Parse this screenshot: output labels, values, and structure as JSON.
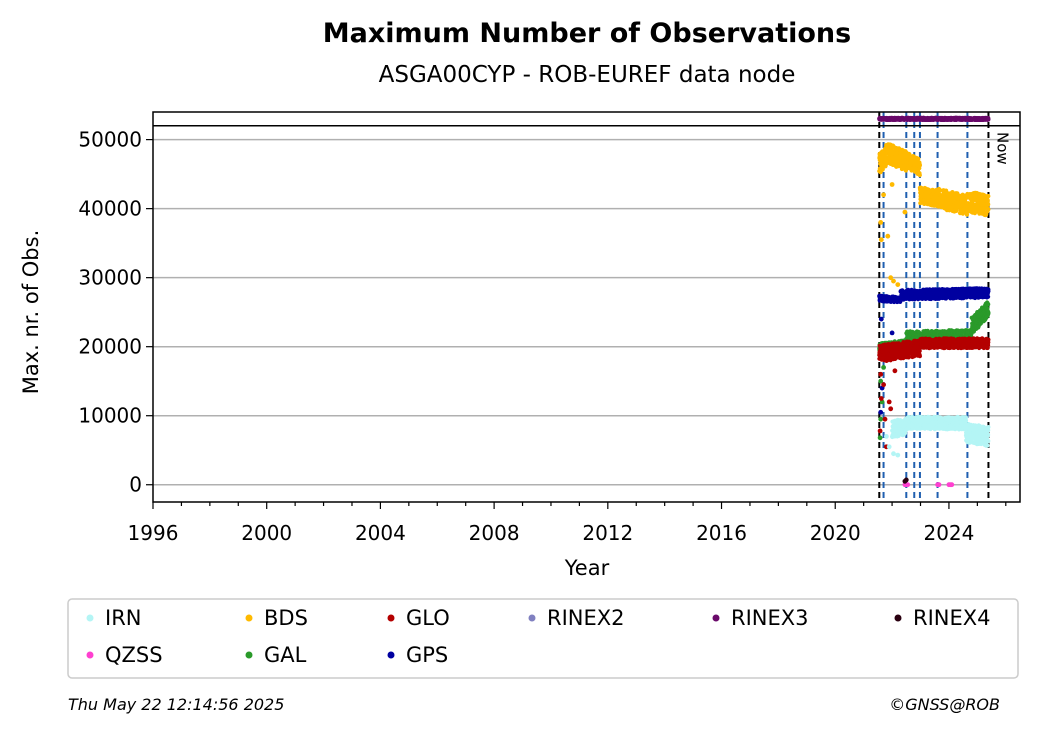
{
  "chart_data": {
    "type": "scatter",
    "title": "Maximum Number of Observations",
    "subtitle": "ASGA00CYP - ROB-EUREF data node",
    "xlabel": "Year",
    "ylabel": "Max. nr. of Obs.",
    "xlim": [
      1996,
      2026.5
    ],
    "ylim": [
      -2500,
      54000
    ],
    "xticks": [
      1996,
      2000,
      2004,
      2008,
      2012,
      2016,
      2020,
      2024
    ],
    "yticks": [
      0,
      10000,
      20000,
      30000,
      40000,
      50000
    ],
    "grid": "horizontal",
    "hline": 52000,
    "now_label": "Now",
    "now_x": 2025.39,
    "vlines": [
      {
        "x": 2021.55,
        "color": "#000000"
      },
      {
        "x": 2021.7,
        "color": "#1f5fb0"
      },
      {
        "x": 2022.5,
        "color": "#1f5fb0"
      },
      {
        "x": 2022.78,
        "color": "#1f5fb0"
      },
      {
        "x": 2022.98,
        "color": "#1f5fb0"
      },
      {
        "x": 2023.6,
        "color": "#1f5fb0"
      },
      {
        "x": 2024.65,
        "color": "#1f5fb0"
      },
      {
        "x": 2025.39,
        "color": "#000000"
      }
    ],
    "legend": {
      "placement": "below",
      "entries": [
        {
          "name": "IRN",
          "color": "#b4f5f5"
        },
        {
          "name": "BDS",
          "color": "#ffba00"
        },
        {
          "name": "GLO",
          "color": "#b40000"
        },
        {
          "name": "RINEX2",
          "color": "#8080c0"
        },
        {
          "name": "RINEX3",
          "color": "#6a0a6a"
        },
        {
          "name": "RINEX4",
          "color": "#2a0010"
        },
        {
          "name": "QZSS",
          "color": "#ff40d0"
        },
        {
          "name": "GAL",
          "color": "#2a9a2a"
        },
        {
          "name": "GPS",
          "color": "#0000a0"
        }
      ]
    },
    "series": [
      {
        "name": "RINEX3",
        "color": "#6a0a6a",
        "segments": [
          {
            "x0": 2021.55,
            "x1": 2025.39,
            "y0": 53000,
            "y1": 53000,
            "spread": 150
          }
        ],
        "outliers": []
      },
      {
        "name": "BDS",
        "color": "#ffba00",
        "segments": [
          {
            "x0": 2021.55,
            "x1": 2021.85,
            "y0": 46500,
            "y1": 48000,
            "spread": 1500
          },
          {
            "x0": 2021.85,
            "x1": 2022.5,
            "y0": 48000,
            "y1": 47000,
            "spread": 1500
          },
          {
            "x0": 2022.5,
            "x1": 2022.98,
            "y0": 47000,
            "y1": 46000,
            "spread": 1200
          },
          {
            "x0": 2022.98,
            "x1": 2023.6,
            "y0": 42000,
            "y1": 41500,
            "spread": 1200
          },
          {
            "x0": 2023.6,
            "x1": 2024.65,
            "y0": 41500,
            "y1": 40500,
            "spread": 1400
          },
          {
            "x0": 2024.65,
            "x1": 2025.39,
            "y0": 41000,
            "y1": 40500,
            "spread": 1500
          }
        ],
        "outliers": [
          [
            2021.6,
            38000
          ],
          [
            2021.62,
            35500
          ],
          [
            2021.7,
            42000
          ],
          [
            2021.85,
            36000
          ],
          [
            2022.05,
            29500
          ],
          [
            2022.2,
            29000
          ],
          [
            2021.95,
            30000
          ],
          [
            2022.45,
            39500
          ],
          [
            2022.0,
            43500
          ]
        ]
      },
      {
        "name": "GPS",
        "color": "#0000a0",
        "segments": [
          {
            "x0": 2021.55,
            "x1": 2022.3,
            "y0": 27000,
            "y1": 26800,
            "spread": 400
          },
          {
            "x0": 2022.3,
            "x1": 2025.39,
            "y0": 27500,
            "y1": 27800,
            "spread": 700
          }
        ],
        "outliers": [
          [
            2021.6,
            10500
          ],
          [
            2021.62,
            24000
          ],
          [
            2021.7,
            20000
          ],
          [
            2021.65,
            14000
          ],
          [
            2022.0,
            22000
          ],
          [
            2021.8,
            18500
          ]
        ]
      },
      {
        "name": "GAL",
        "color": "#2a9a2a",
        "segments": [
          {
            "x0": 2021.55,
            "x1": 2022.5,
            "y0": 19500,
            "y1": 20000,
            "spread": 1000
          },
          {
            "x0": 2022.5,
            "x1": 2024.8,
            "y0": 21000,
            "y1": 21300,
            "spread": 1200
          },
          {
            "x0": 2024.8,
            "x1": 2025.39,
            "y0": 23000,
            "y1": 25500,
            "spread": 1200
          }
        ],
        "outliers": [
          [
            2021.58,
            6800
          ],
          [
            2021.6,
            9500
          ],
          [
            2021.6,
            15000
          ],
          [
            2021.65,
            12000
          ],
          [
            2021.7,
            17000
          ]
        ]
      },
      {
        "name": "GLO",
        "color": "#b40000",
        "segments": [
          {
            "x0": 2021.55,
            "x1": 2022.98,
            "y0": 19000,
            "y1": 19800,
            "spread": 1200
          },
          {
            "x0": 2022.98,
            "x1": 2025.39,
            "y0": 20500,
            "y1": 20500,
            "spread": 700
          }
        ],
        "outliers": [
          [
            2021.58,
            7800
          ],
          [
            2021.6,
            16000
          ],
          [
            2021.62,
            12500
          ],
          [
            2021.7,
            14500
          ],
          [
            2021.75,
            9500
          ],
          [
            2021.8,
            5500
          ],
          [
            2021.95,
            11000
          ],
          [
            2022.1,
            16500
          ],
          [
            2021.9,
            12000
          ]
        ]
      },
      {
        "name": "IRN",
        "color": "#b4f5f5",
        "segments": [
          {
            "x0": 2022.0,
            "x1": 2022.5,
            "y0": 8000,
            "y1": 8500,
            "spread": 1200
          },
          {
            "x0": 2022.5,
            "x1": 2024.6,
            "y0": 9000,
            "y1": 8900,
            "spread": 900
          },
          {
            "x0": 2024.6,
            "x1": 2025.39,
            "y0": 7500,
            "y1": 7000,
            "spread": 1400
          }
        ],
        "outliers": [
          [
            2021.9,
            5500
          ],
          [
            2022.05,
            4500
          ],
          [
            2022.2,
            4300
          ],
          [
            2021.8,
            7000
          ]
        ]
      },
      {
        "name": "QZSS",
        "color": "#ff40d0",
        "segments": [],
        "outliers": [
          [
            2022.45,
            0
          ],
          [
            2022.5,
            0
          ],
          [
            2022.55,
            0
          ],
          [
            2023.6,
            0
          ],
          [
            2023.65,
            0
          ],
          [
            2024.0,
            0
          ],
          [
            2024.05,
            0
          ],
          [
            2024.1,
            0
          ]
        ]
      },
      {
        "name": "RINEX4",
        "color": "#2a0010",
        "segments": [],
        "outliers": [
          [
            2022.45,
            500
          ],
          [
            2022.5,
            700
          ]
        ]
      }
    ]
  },
  "footer": {
    "timestamp": "Thu May 22 12:14:56 2025",
    "credit": "©GNSS@ROB"
  }
}
